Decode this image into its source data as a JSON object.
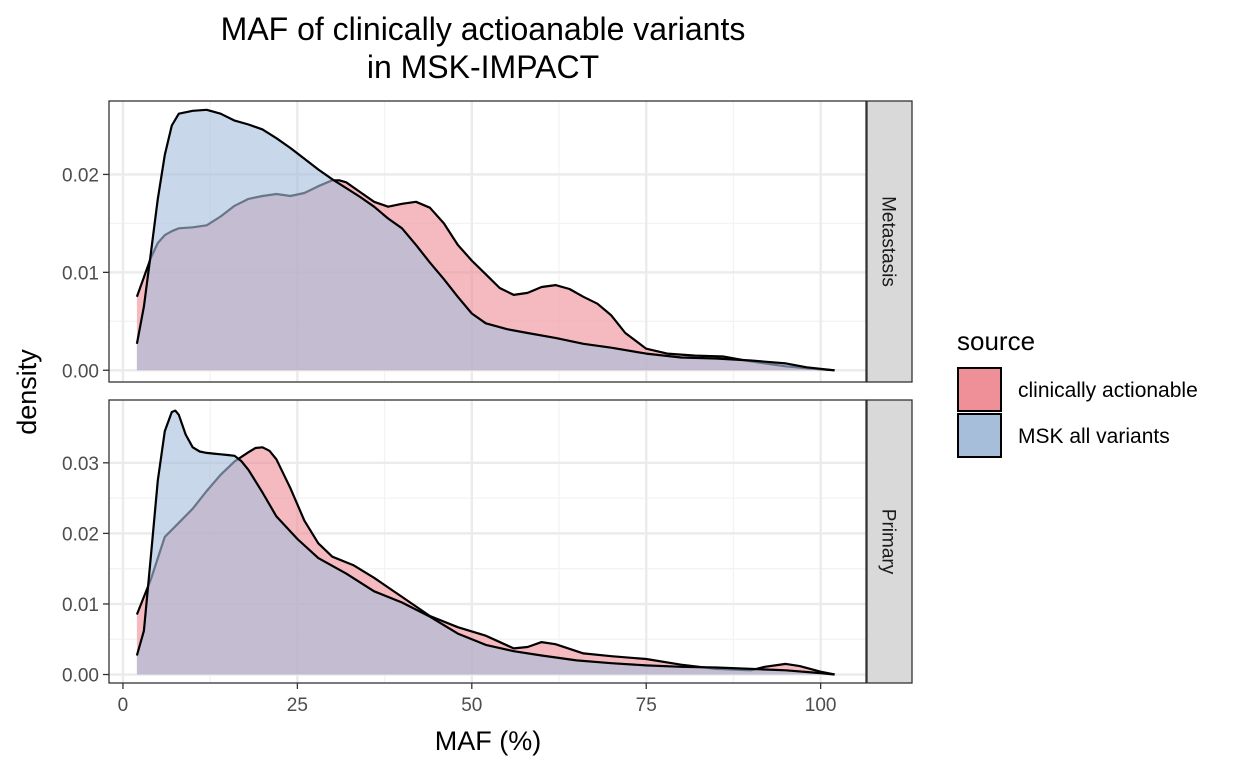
{
  "chart_data": {
    "type": "area",
    "subtype": "faceted density",
    "title": "MAF of clinically actioanable variants\nin MSK-IMPACT",
    "xlabel": "MAF (%)",
    "ylabel": "density",
    "xlim": [
      -2,
      106.5
    ],
    "x_ticks": [
      0,
      25,
      50,
      75,
      100
    ],
    "grid": true,
    "legend": {
      "title": "source",
      "position": "right",
      "entries": [
        {
          "name": "clinically actionable",
          "color": "#EF8F98"
        },
        {
          "name": "MSK all variants",
          "color": "#A7BEDB"
        }
      ]
    },
    "colors": {
      "clinically actionable": "#EF8F98",
      "MSK all variants": "#A7BEDB",
      "overlap": "#A08AA2",
      "strip_bg": "#D9D9D9",
      "grid_major": "#EBEBEB"
    },
    "facets": [
      {
        "label": "Metastasis",
        "ylim": [
          -0.0012,
          0.0275
        ],
        "y_ticks": [
          0.0,
          0.01,
          0.02
        ],
        "y_tick_labels": [
          "0.00",
          "0.01",
          "0.02"
        ],
        "series": [
          {
            "name": "clinically actionable",
            "x": [
              2,
              3,
              4,
              5,
              6,
              7,
              8,
              10,
              12,
              14,
              16,
              18,
              20,
              22,
              24,
              26,
              28,
              30,
              31,
              32,
              34,
              36,
              38,
              40,
              42,
              44,
              46,
              48,
              50,
              52,
              54,
              56,
              58,
              60,
              62,
              64,
              66,
              68,
              70,
              72,
              75,
              78,
              82,
              86,
              90,
              95,
              98,
              102
            ],
            "y": [
              0.0075,
              0.0095,
              0.0115,
              0.013,
              0.0138,
              0.0142,
              0.0145,
              0.0146,
              0.0148,
              0.0157,
              0.0168,
              0.0175,
              0.0178,
              0.018,
              0.0178,
              0.0181,
              0.0188,
              0.0194,
              0.0194,
              0.0192,
              0.0182,
              0.0172,
              0.0167,
              0.017,
              0.0172,
              0.0166,
              0.015,
              0.0128,
              0.0112,
              0.0098,
              0.0084,
              0.0077,
              0.0079,
              0.0085,
              0.0087,
              0.0083,
              0.0075,
              0.0068,
              0.0056,
              0.0038,
              0.0022,
              0.0017,
              0.0015,
              0.0014,
              0.0009,
              0.0004,
              0.0002,
              0.0
            ]
          },
          {
            "name": "MSK all variants",
            "x": [
              2,
              3,
              4,
              5,
              6,
              7,
              8,
              10,
              12,
              14,
              16,
              18,
              20,
              22,
              24,
              26,
              28,
              30,
              32,
              34,
              36,
              38,
              40,
              42,
              44,
              46,
              48,
              50,
              52,
              55,
              58,
              62,
              66,
              70,
              75,
              80,
              85,
              90,
              95,
              98,
              102
            ],
            "y": [
              0.0027,
              0.0065,
              0.012,
              0.0175,
              0.022,
              0.025,
              0.0262,
              0.0265,
              0.0266,
              0.0262,
              0.0255,
              0.0251,
              0.0246,
              0.0237,
              0.0227,
              0.0216,
              0.0205,
              0.0195,
              0.0186,
              0.0177,
              0.0167,
              0.0155,
              0.0145,
              0.0128,
              0.011,
              0.0093,
              0.0075,
              0.0058,
              0.0048,
              0.0042,
              0.0038,
              0.0033,
              0.0027,
              0.0023,
              0.0017,
              0.0013,
              0.0012,
              0.001,
              0.0007,
              0.0003,
              0.0
            ]
          }
        ]
      },
      {
        "label": "Primary",
        "ylim": [
          -0.0012,
          0.0389
        ],
        "y_ticks": [
          0.0,
          0.01,
          0.02,
          0.03
        ],
        "y_tick_labels": [
          "0.00",
          "0.01",
          "0.02",
          "0.03"
        ],
        "series": [
          {
            "name": "clinically actionable",
            "x": [
              2,
              3,
              4,
              5,
              6,
              8,
              10,
              12,
              14,
              16,
              18,
              19,
              20,
              21,
              22,
              24,
              26,
              28,
              30,
              33,
              36,
              40,
              44,
              48,
              52,
              56,
              58,
              60,
              62,
              66,
              70,
              75,
              80,
              85,
              90,
              92,
              95,
              97,
              100,
              102
            ],
            "y": [
              0.0085,
              0.011,
              0.0135,
              0.0165,
              0.0195,
              0.0215,
              0.0235,
              0.026,
              0.0283,
              0.0302,
              0.0315,
              0.0321,
              0.0322,
              0.0317,
              0.0305,
              0.0264,
              0.0218,
              0.0186,
              0.0167,
              0.0155,
              0.0137,
              0.011,
              0.0083,
              0.0067,
              0.0055,
              0.0037,
              0.0039,
              0.0046,
              0.0043,
              0.003,
              0.0026,
              0.0022,
              0.0014,
              0.0008,
              0.0006,
              0.0011,
              0.0015,
              0.0012,
              0.0004,
              0.0
            ]
          },
          {
            "name": "MSK all variants",
            "x": [
              2,
              3,
              4,
              5,
              6,
              7,
              7.5,
              8,
              9,
              10,
              11,
              12,
              13,
              14,
              15,
              16,
              17,
              18,
              20,
              22,
              25,
              28,
              32,
              36,
              40,
              44,
              48,
              52,
              56,
              60,
              65,
              70,
              75,
              80,
              85,
              90,
              95,
              100,
              102
            ],
            "y": [
              0.0027,
              0.0062,
              0.0168,
              0.0275,
              0.0345,
              0.0372,
              0.0374,
              0.0368,
              0.034,
              0.0322,
              0.0316,
              0.0314,
              0.0313,
              0.0312,
              0.0311,
              0.031,
              0.0302,
              0.029,
              0.0258,
              0.0224,
              0.0192,
              0.0165,
              0.0143,
              0.0118,
              0.0102,
              0.0082,
              0.0058,
              0.0042,
              0.0033,
              0.0027,
              0.002,
              0.0016,
              0.0013,
              0.0011,
              0.001,
              0.0008,
              0.0006,
              0.0002,
              0.0
            ]
          }
        ]
      }
    ]
  }
}
